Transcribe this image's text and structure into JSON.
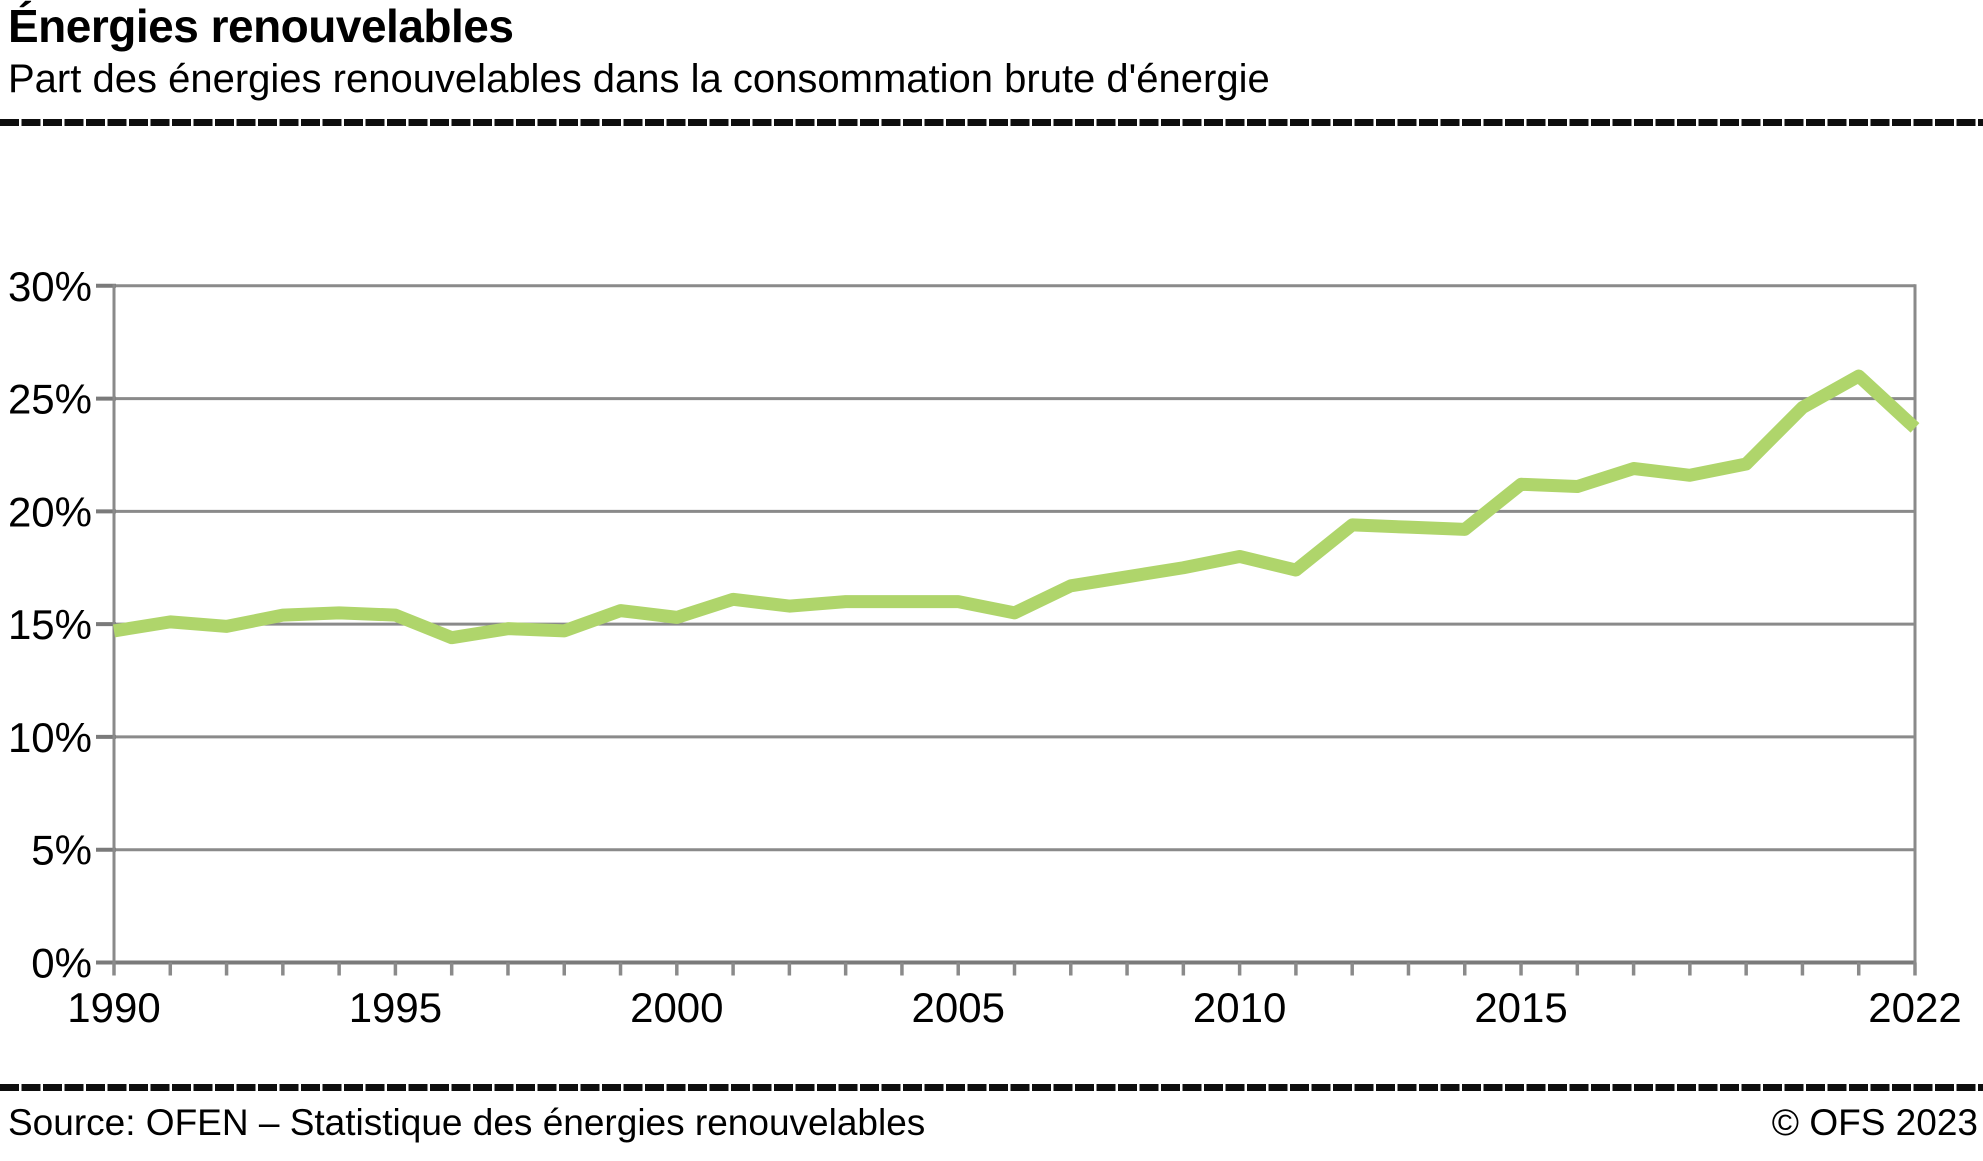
{
  "header": {
    "title": "Énergies renouvelables",
    "subtitle": "Part des énergies renouvelables dans la consommation brute d'énergie"
  },
  "footer": {
    "source": "Source: OFEN – Statistique des énergies renouvelables",
    "copyright": "© OFS 2023"
  },
  "chart_data": {
    "type": "line",
    "title": "Part des énergies renouvelables dans la consommation brute d'énergie",
    "xlabel": "",
    "ylabel": "%",
    "xlim": [
      1990,
      2022
    ],
    "ylim": [
      0,
      30
    ],
    "grid": "horizontal",
    "legend": "none",
    "x": [
      1990,
      1991,
      1992,
      1993,
      1994,
      1995,
      1996,
      1997,
      1998,
      1999,
      2000,
      2001,
      2002,
      2003,
      2004,
      2005,
      2006,
      2007,
      2008,
      2009,
      2010,
      2011,
      2012,
      2013,
      2014,
      2015,
      2016,
      2017,
      2018,
      2019,
      2020,
      2021,
      2022
    ],
    "series": [
      {
        "name": "Part des énergies renouvelables",
        "color": "#afd56b",
        "values": [
          14.7,
          15.1,
          14.9,
          15.4,
          15.5,
          15.4,
          14.4,
          14.8,
          14.7,
          15.6,
          15.3,
          16.1,
          15.8,
          16.0,
          16.0,
          16.0,
          15.5,
          16.7,
          17.1,
          17.5,
          18.0,
          17.4,
          19.4,
          19.3,
          19.2,
          21.2,
          21.1,
          21.9,
          21.6,
          22.1,
          24.6,
          26.0,
          23.7
        ]
      }
    ],
    "yticks": {
      "values": [
        0,
        5,
        10,
        15,
        20,
        25,
        30
      ],
      "labels": [
        "0%",
        "5%",
        "10%",
        "15%",
        "20%",
        "25%",
        "30%"
      ]
    },
    "xticks": {
      "minor_every": 1,
      "labeled_values": [
        1990,
        1995,
        2000,
        2005,
        2010,
        2015,
        2022
      ],
      "labels": [
        "1990",
        "1995",
        "2000",
        "2005",
        "2010",
        "2015",
        "2022"
      ]
    },
    "colors": {
      "line": "#afd56b",
      "grid": "#8a8a8a",
      "axis": "#7a7a7a",
      "text": "#000000"
    }
  }
}
